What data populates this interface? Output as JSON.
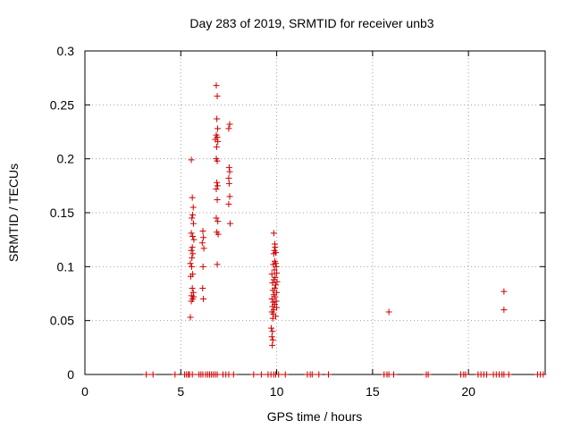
{
  "chart_data": {
    "type": "scatter",
    "title": "Day 283 of 2019, SRMTID for receiver unb3",
    "xlabel": "GPS time / hours",
    "ylabel": "SRMTID / TECUs",
    "xlim": [
      0,
      24
    ],
    "ylim": [
      0,
      0.3
    ],
    "x_ticks": [
      0,
      5,
      10,
      15,
      20
    ],
    "x_tick_labels": [
      "0",
      "5",
      "10",
      "15",
      "20"
    ],
    "y_ticks": [
      0,
      0.05,
      0.1,
      0.15,
      0.2,
      0.25,
      0.3
    ],
    "y_tick_labels": [
      "0",
      "0.05",
      "0.1",
      "0.15",
      "0.2",
      "0.25",
      "0.3"
    ],
    "grid": true,
    "marker": "+",
    "color": "#cc0000",
    "series": [
      {
        "name": "SRMTID",
        "points": [
          [
            5.55,
            0.199
          ],
          [
            5.6,
            0.164
          ],
          [
            5.65,
            0.155
          ],
          [
            5.62,
            0.148
          ],
          [
            5.58,
            0.145
          ],
          [
            5.66,
            0.14
          ],
          [
            5.55,
            0.131
          ],
          [
            5.62,
            0.128
          ],
          [
            5.68,
            0.125
          ],
          [
            5.6,
            0.118
          ],
          [
            5.55,
            0.115
          ],
          [
            5.63,
            0.112
          ],
          [
            5.58,
            0.108
          ],
          [
            5.5,
            0.103
          ],
          [
            5.57,
            0.1
          ],
          [
            5.62,
            0.093
          ],
          [
            5.52,
            0.091
          ],
          [
            5.6,
            0.08
          ],
          [
            5.65,
            0.076
          ],
          [
            5.56,
            0.073
          ],
          [
            5.62,
            0.07
          ],
          [
            5.55,
            0.068
          ],
          [
            5.5,
            0.053
          ],
          [
            5.67,
            0.072
          ],
          [
            6.15,
            0.133
          ],
          [
            6.18,
            0.127
          ],
          [
            6.12,
            0.122
          ],
          [
            6.2,
            0.117
          ],
          [
            6.16,
            0.1
          ],
          [
            6.14,
            0.08
          ],
          [
            6.18,
            0.07
          ],
          [
            6.85,
            0.268
          ],
          [
            6.9,
            0.258
          ],
          [
            6.88,
            0.237
          ],
          [
            6.92,
            0.228
          ],
          [
            6.85,
            0.222
          ],
          [
            6.9,
            0.22
          ],
          [
            6.8,
            0.218
          ],
          [
            6.93,
            0.216
          ],
          [
            6.87,
            0.211
          ],
          [
            6.85,
            0.2
          ],
          [
            6.9,
            0.198
          ],
          [
            6.88,
            0.178
          ],
          [
            6.92,
            0.175
          ],
          [
            6.85,
            0.172
          ],
          [
            6.9,
            0.162
          ],
          [
            6.85,
            0.145
          ],
          [
            6.93,
            0.142
          ],
          [
            6.88,
            0.132
          ],
          [
            6.95,
            0.13
          ],
          [
            6.9,
            0.102
          ],
          [
            7.55,
            0.232
          ],
          [
            7.5,
            0.228
          ],
          [
            7.52,
            0.192
          ],
          [
            7.55,
            0.188
          ],
          [
            7.5,
            0.182
          ],
          [
            7.52,
            0.177
          ],
          [
            7.55,
            0.165
          ],
          [
            7.5,
            0.158
          ],
          [
            7.57,
            0.14
          ],
          [
            9.85,
            0.131
          ],
          [
            9.9,
            0.121
          ],
          [
            9.92,
            0.118
          ],
          [
            9.88,
            0.115
          ],
          [
            9.95,
            0.113
          ],
          [
            9.85,
            0.112
          ],
          [
            9.9,
            0.105
          ],
          [
            9.95,
            0.103
          ],
          [
            9.82,
            0.102
          ],
          [
            9.98,
            0.1
          ],
          [
            9.88,
            0.097
          ],
          [
            10.0,
            0.094
          ],
          [
            9.75,
            0.093
          ],
          [
            9.92,
            0.09
          ],
          [
            9.85,
            0.088
          ],
          [
            10.02,
            0.086
          ],
          [
            9.78,
            0.085
          ],
          [
            9.95,
            0.083
          ],
          [
            9.9,
            0.08
          ],
          [
            9.8,
            0.078
          ],
          [
            10.0,
            0.076
          ],
          [
            9.85,
            0.074
          ],
          [
            9.92,
            0.072
          ],
          [
            9.75,
            0.07
          ],
          [
            9.98,
            0.068
          ],
          [
            9.82,
            0.067
          ],
          [
            9.9,
            0.065
          ],
          [
            9.78,
            0.063
          ],
          [
            10.0,
            0.062
          ],
          [
            9.85,
            0.06
          ],
          [
            9.75,
            0.058
          ],
          [
            9.82,
            0.056
          ],
          [
            9.95,
            0.054
          ],
          [
            9.8,
            0.052
          ],
          [
            9.72,
            0.043
          ],
          [
            9.78,
            0.04
          ],
          [
            9.75,
            0.035
          ],
          [
            9.8,
            0.032
          ],
          [
            9.77,
            0.027
          ],
          [
            15.85,
            0.058
          ],
          [
            21.85,
            0.077
          ],
          [
            21.85,
            0.06
          ],
          [
            3.2,
            0.0
          ],
          [
            3.55,
            0.0
          ],
          [
            4.7,
            0.0
          ],
          [
            5.2,
            0.0
          ],
          [
            5.3,
            0.0
          ],
          [
            5.4,
            0.0
          ],
          [
            5.45,
            0.0
          ],
          [
            5.6,
            0.0
          ],
          [
            5.95,
            0.0
          ],
          [
            6.05,
            0.0
          ],
          [
            6.15,
            0.0
          ],
          [
            6.3,
            0.0
          ],
          [
            6.4,
            0.0
          ],
          [
            6.5,
            0.0
          ],
          [
            6.6,
            0.0
          ],
          [
            6.7,
            0.0
          ],
          [
            6.8,
            0.0
          ],
          [
            6.9,
            0.0
          ],
          [
            7.2,
            0.0
          ],
          [
            7.35,
            0.0
          ],
          [
            7.5,
            0.0
          ],
          [
            7.75,
            0.0
          ],
          [
            8.8,
            0.0
          ],
          [
            9.2,
            0.0
          ],
          [
            9.55,
            0.0
          ],
          [
            9.7,
            0.0
          ],
          [
            9.85,
            0.0
          ],
          [
            9.95,
            0.0
          ],
          [
            10.1,
            0.0
          ],
          [
            10.45,
            0.0
          ],
          [
            11.6,
            0.0
          ],
          [
            11.75,
            0.0
          ],
          [
            11.85,
            0.0
          ],
          [
            12.2,
            0.0
          ],
          [
            12.7,
            0.0
          ],
          [
            15.6,
            0.0
          ],
          [
            15.75,
            0.0
          ],
          [
            15.85,
            0.0
          ],
          [
            16.1,
            0.0
          ],
          [
            17.8,
            0.0
          ],
          [
            17.9,
            0.0
          ],
          [
            19.6,
            0.0
          ],
          [
            19.75,
            0.0
          ],
          [
            19.85,
            0.0
          ],
          [
            20.5,
            0.0
          ],
          [
            20.65,
            0.0
          ],
          [
            20.8,
            0.0
          ],
          [
            20.95,
            0.0
          ],
          [
            21.3,
            0.0
          ],
          [
            21.45,
            0.0
          ],
          [
            21.6,
            0.0
          ],
          [
            21.75,
            0.0
          ],
          [
            21.85,
            0.0
          ],
          [
            22.1,
            0.0
          ],
          [
            23.6,
            0.0
          ],
          [
            23.75,
            0.0
          ],
          [
            23.9,
            0.0
          ]
        ]
      }
    ]
  }
}
